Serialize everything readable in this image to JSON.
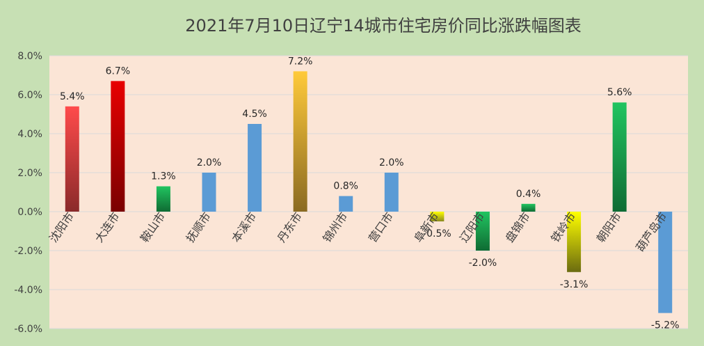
{
  "chart_data": {
    "type": "bar",
    "title": "2021年7月10日辽宁14城市住宅房价同比涨跌幅图表",
    "categories": [
      "沈阳市",
      "大连市",
      "鞍山市",
      "抚顺市",
      "本溪市",
      "丹东市",
      "锦州市",
      "营口市",
      "阜新市",
      "辽阳市",
      "盘锦市",
      "铁岭市",
      "朝阳市",
      "葫芦岛市"
    ],
    "values": [
      5.4,
      6.7,
      1.3,
      2.0,
      4.5,
      7.2,
      0.8,
      2.0,
      -0.5,
      -2.0,
      0.4,
      -3.1,
      5.6,
      -5.2
    ],
    "value_labels": [
      "5.4%",
      "6.7%",
      "1.3%",
      "2.0%",
      "4.5%",
      "7.2%",
      "0.8%",
      "2.0%",
      "-0.5%",
      "-2.0%",
      "0.4%",
      "-3.1%",
      "5.6%",
      "-5.2%"
    ],
    "ylim": [
      -6,
      8
    ],
    "yticks": [
      8,
      6,
      4,
      2,
      0,
      -2,
      -4,
      -6
    ],
    "ytick_labels": [
      "8.0%",
      "6.0%",
      "4.0%",
      "2.0%",
      "0.0%",
      "-2.0%",
      "-4.0%",
      "-6.0%"
    ],
    "xlabel": "",
    "ylabel": "",
    "grid": true,
    "legend": "none",
    "colors": {
      "page_background": "#c7e0b4",
      "plot_background": "#fbe5d6",
      "gridline": "#d9d9d9",
      "bar_fills": [
        [
          "#ff4b4b",
          "#8a2a2a"
        ],
        [
          "#e80000",
          "#7a0000"
        ],
        [
          "#21c460",
          "#0f6b33"
        ],
        [
          "#5b9bd5",
          "#5b9bd5"
        ],
        [
          "#5b9bd5",
          "#5b9bd5"
        ],
        [
          "#ffca3a",
          "#8a6a22"
        ],
        [
          "#5b9bd5",
          "#5b9bd5"
        ],
        [
          "#5b9bd5",
          "#5b9bd5"
        ],
        [
          "#ffff00",
          "#8a8a20"
        ],
        [
          "#21c460",
          "#0f6b33"
        ],
        [
          "#21c460",
          "#0f6b33"
        ],
        [
          "#ffff00",
          "#6b6b10"
        ],
        [
          "#21c460",
          "#0f6b33"
        ],
        [
          "#5b9bd5",
          "#5b9bd5"
        ]
      ]
    }
  }
}
